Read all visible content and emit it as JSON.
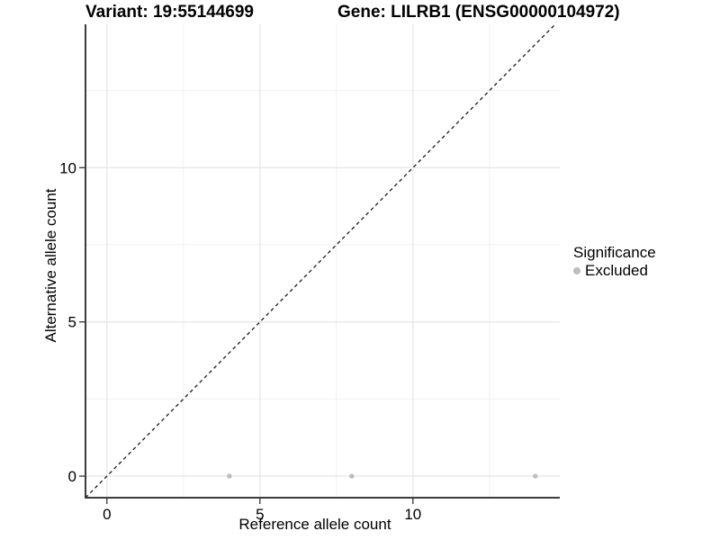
{
  "header": {
    "variant_title": "Variant: 19:55144699",
    "gene_title": "Gene: LILRB1 (ENSG00000104972)"
  },
  "chart_data": {
    "type": "scatter",
    "title": "",
    "xlabel": "Reference allele count",
    "ylabel": "Alternative allele count",
    "xlim": [
      -0.7,
      14.8
    ],
    "ylim": [
      -0.7,
      14.65
    ],
    "x_ticks": [
      0,
      5,
      10
    ],
    "y_ticks": [
      0,
      5,
      10
    ],
    "x_minor_ticks": [
      2.5,
      7.5,
      12.5
    ],
    "y_minor_ticks": [
      2.5,
      7.5,
      12.5
    ],
    "grid": true,
    "legend_position": "right",
    "series": [
      {
        "name": "Excluded",
        "color": "#bdbdbd",
        "points": [
          {
            "x": 4,
            "y": 0
          },
          {
            "x": 8,
            "y": 0
          },
          {
            "x": 14,
            "y": 0
          }
        ]
      }
    ],
    "reference_line": {
      "slope": 1,
      "intercept": 0,
      "style": "dashed",
      "color": "#1a1a1a"
    },
    "legend": {
      "title": "Significance",
      "items": [
        {
          "label": "Excluded",
          "color": "#bdbdbd"
        }
      ]
    },
    "colors": {
      "background": "#ffffff",
      "major_grid": "#e7e7e7",
      "minor_grid": "#efefef",
      "axis_line": "#3c3c3c",
      "tick_mark": "#333333",
      "text": "#000000"
    }
  }
}
